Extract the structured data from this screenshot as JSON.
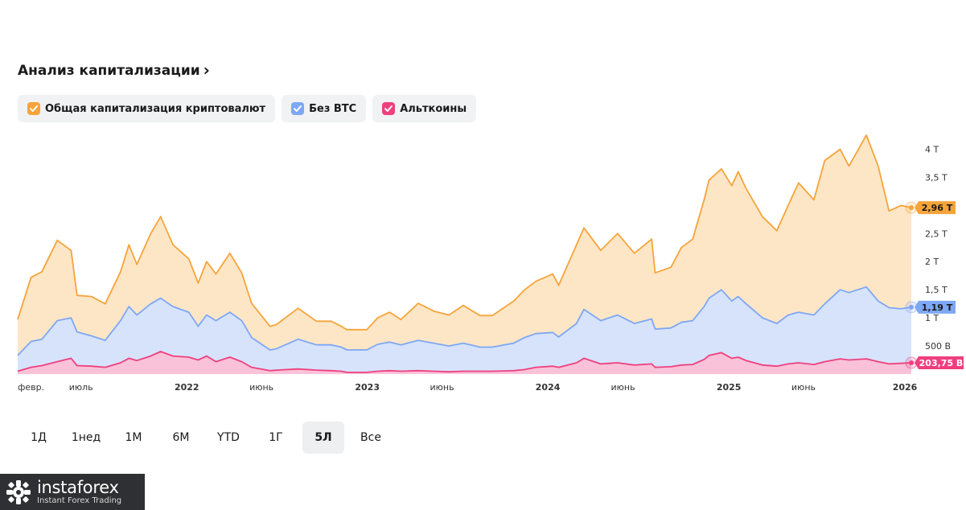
{
  "header": {
    "title": "Анализ капитализации"
  },
  "legend": [
    {
      "label": "Общая капитализация криптовалют",
      "color": "#f6a43a"
    },
    {
      "label": "Без BTC",
      "color": "#7ea7f5"
    },
    {
      "label": "Альткоины",
      "color": "#ef3f7e"
    }
  ],
  "ranges": {
    "items": [
      "1Д",
      "1нед",
      "1М",
      "6М",
      "YTD",
      "1Г",
      "5Л",
      "Все"
    ],
    "selected": "5Л"
  },
  "brand": {
    "name": "instaforex",
    "tagline": "Instant Forex Trading"
  },
  "chart_data": {
    "type": "area",
    "y_ticks": [
      {
        "value": 0.5,
        "label": "500 B"
      },
      {
        "value": 1.0,
        "label": "1 T"
      },
      {
        "value": 1.5,
        "label": "1,5 T"
      },
      {
        "value": 2.0,
        "label": "2 T"
      },
      {
        "value": 2.5,
        "label": "2,5 T"
      },
      {
        "value": 3.0,
        "label": "3 T"
      },
      {
        "value": 3.5,
        "label": "3,5 T"
      },
      {
        "value": 4.0,
        "label": "4 T"
      }
    ],
    "x_ticks": [
      {
        "date": "2021-02-01",
        "label": "февр.",
        "bold": false
      },
      {
        "date": "2021-06-01",
        "label": "июль",
        "bold": false
      },
      {
        "date": "2022-01-01",
        "label": "2022",
        "bold": true
      },
      {
        "date": "2022-06-01",
        "label": "июнь",
        "bold": false
      },
      {
        "date": "2023-01-01",
        "label": "2023",
        "bold": true
      },
      {
        "date": "2023-06-01",
        "label": "июнь",
        "bold": false
      },
      {
        "date": "2024-01-01",
        "label": "2024",
        "bold": true
      },
      {
        "date": "2024-06-01",
        "label": "июнь",
        "bold": false
      },
      {
        "date": "2025-01-01",
        "label": "2025",
        "bold": true
      },
      {
        "date": "2025-06-01",
        "label": "июнь",
        "bold": false
      },
      {
        "date": "2026-01-01",
        "label": "2026",
        "bold": true
      }
    ],
    "ylim": [
      0,
      4.15
    ],
    "xlim": [
      "2021-01-24",
      "2026-01-05"
    ],
    "grid": false,
    "legend_position": "top-left",
    "series": [
      {
        "name": "Общая капитализация криптовалют",
        "color": "#f6a43a",
        "fill": "#fde6c6",
        "last_label": "2,96 T",
        "points": [
          [
            "2021-01-24",
            0.97
          ],
          [
            "2021-02-20",
            1.72
          ],
          [
            "2021-03-14",
            1.82
          ],
          [
            "2021-04-14",
            2.38
          ],
          [
            "2021-05-12",
            2.2
          ],
          [
            "2021-05-24",
            1.4
          ],
          [
            "2021-06-22",
            1.38
          ],
          [
            "2021-07-20",
            1.25
          ],
          [
            "2021-08-20",
            1.82
          ],
          [
            "2021-09-06",
            2.3
          ],
          [
            "2021-09-22",
            1.95
          ],
          [
            "2021-10-20",
            2.5
          ],
          [
            "2021-11-09",
            2.8
          ],
          [
            "2021-12-04",
            2.3
          ],
          [
            "2022-01-05",
            2.05
          ],
          [
            "2022-01-24",
            1.62
          ],
          [
            "2022-02-10",
            2.0
          ],
          [
            "2022-03-01",
            1.78
          ],
          [
            "2022-03-29",
            2.15
          ],
          [
            "2022-04-22",
            1.8
          ],
          [
            "2022-05-12",
            1.26
          ],
          [
            "2022-06-18",
            0.85
          ],
          [
            "2022-07-01",
            0.88
          ],
          [
            "2022-08-14",
            1.17
          ],
          [
            "2022-09-20",
            0.94
          ],
          [
            "2022-10-20",
            0.94
          ],
          [
            "2022-11-09",
            0.85
          ],
          [
            "2022-11-21",
            0.79
          ],
          [
            "2022-12-31",
            0.79
          ],
          [
            "2023-01-22",
            1.0
          ],
          [
            "2023-02-15",
            1.1
          ],
          [
            "2023-03-10",
            0.97
          ],
          [
            "2023-04-14",
            1.26
          ],
          [
            "2023-05-15",
            1.12
          ],
          [
            "2023-06-15",
            1.05
          ],
          [
            "2023-07-14",
            1.22
          ],
          [
            "2023-08-17",
            1.04
          ],
          [
            "2023-09-11",
            1.04
          ],
          [
            "2023-10-24",
            1.3
          ],
          [
            "2023-11-15",
            1.5
          ],
          [
            "2023-12-08",
            1.65
          ],
          [
            "2024-01-11",
            1.78
          ],
          [
            "2024-01-23",
            1.58
          ],
          [
            "2024-02-28",
            2.3
          ],
          [
            "2024-03-14",
            2.6
          ],
          [
            "2024-04-17",
            2.2
          ],
          [
            "2024-05-21",
            2.5
          ],
          [
            "2024-06-24",
            2.15
          ],
          [
            "2024-07-29",
            2.4
          ],
          [
            "2024-08-05",
            1.8
          ],
          [
            "2024-09-06",
            1.9
          ],
          [
            "2024-09-27",
            2.25
          ],
          [
            "2024-10-20",
            2.4
          ],
          [
            "2024-11-12",
            3.1
          ],
          [
            "2024-11-22",
            3.45
          ],
          [
            "2024-12-17",
            3.65
          ],
          [
            "2025-01-07",
            3.35
          ],
          [
            "2025-01-20",
            3.6
          ],
          [
            "2025-02-05",
            3.3
          ],
          [
            "2025-03-10",
            2.8
          ],
          [
            "2025-04-08",
            2.55
          ],
          [
            "2025-05-01",
            3.0
          ],
          [
            "2025-05-22",
            3.4
          ],
          [
            "2025-06-22",
            3.1
          ],
          [
            "2025-07-14",
            3.8
          ],
          [
            "2025-08-14",
            4.0
          ],
          [
            "2025-09-01",
            3.7
          ],
          [
            "2025-10-06",
            4.25
          ],
          [
            "2025-10-30",
            3.7
          ],
          [
            "2025-11-21",
            2.9
          ],
          [
            "2025-12-15",
            3.0
          ],
          [
            "2026-01-05",
            2.96
          ]
        ]
      },
      {
        "name": "Без BTC",
        "color": "#7ea7f5",
        "fill": "#d6e3fb",
        "last_label": "1,19 T",
        "points": [
          [
            "2021-01-24",
            0.33
          ],
          [
            "2021-02-20",
            0.58
          ],
          [
            "2021-03-14",
            0.62
          ],
          [
            "2021-04-14",
            0.95
          ],
          [
            "2021-05-12",
            1.0
          ],
          [
            "2021-05-24",
            0.75
          ],
          [
            "2021-06-22",
            0.68
          ],
          [
            "2021-07-20",
            0.6
          ],
          [
            "2021-08-20",
            0.95
          ],
          [
            "2021-09-06",
            1.2
          ],
          [
            "2021-09-22",
            1.05
          ],
          [
            "2021-10-20",
            1.25
          ],
          [
            "2021-11-09",
            1.35
          ],
          [
            "2021-12-04",
            1.2
          ],
          [
            "2022-01-05",
            1.1
          ],
          [
            "2022-01-24",
            0.85
          ],
          [
            "2022-02-10",
            1.05
          ],
          [
            "2022-03-01",
            0.95
          ],
          [
            "2022-03-29",
            1.1
          ],
          [
            "2022-04-22",
            0.95
          ],
          [
            "2022-05-12",
            0.65
          ],
          [
            "2022-06-18",
            0.43
          ],
          [
            "2022-07-01",
            0.45
          ],
          [
            "2022-08-14",
            0.62
          ],
          [
            "2022-09-20",
            0.52
          ],
          [
            "2022-10-20",
            0.52
          ],
          [
            "2022-11-09",
            0.48
          ],
          [
            "2022-11-21",
            0.43
          ],
          [
            "2022-12-31",
            0.43
          ],
          [
            "2023-01-22",
            0.53
          ],
          [
            "2023-02-15",
            0.57
          ],
          [
            "2023-03-10",
            0.52
          ],
          [
            "2023-04-14",
            0.6
          ],
          [
            "2023-05-15",
            0.55
          ],
          [
            "2023-06-15",
            0.5
          ],
          [
            "2023-07-14",
            0.55
          ],
          [
            "2023-08-17",
            0.48
          ],
          [
            "2023-09-11",
            0.48
          ],
          [
            "2023-10-24",
            0.55
          ],
          [
            "2023-11-15",
            0.65
          ],
          [
            "2023-12-08",
            0.72
          ],
          [
            "2024-01-11",
            0.74
          ],
          [
            "2024-01-23",
            0.66
          ],
          [
            "2024-02-28",
            0.9
          ],
          [
            "2024-03-14",
            1.15
          ],
          [
            "2024-04-17",
            0.95
          ],
          [
            "2024-05-21",
            1.05
          ],
          [
            "2024-06-24",
            0.9
          ],
          [
            "2024-07-29",
            0.98
          ],
          [
            "2024-08-05",
            0.8
          ],
          [
            "2024-09-06",
            0.82
          ],
          [
            "2024-09-27",
            0.92
          ],
          [
            "2024-10-20",
            0.95
          ],
          [
            "2024-11-12",
            1.2
          ],
          [
            "2024-11-22",
            1.35
          ],
          [
            "2024-12-17",
            1.5
          ],
          [
            "2025-01-07",
            1.3
          ],
          [
            "2025-01-20",
            1.38
          ],
          [
            "2025-02-05",
            1.25
          ],
          [
            "2025-03-10",
            1.0
          ],
          [
            "2025-04-08",
            0.9
          ],
          [
            "2025-05-01",
            1.05
          ],
          [
            "2025-05-22",
            1.1
          ],
          [
            "2025-06-22",
            1.05
          ],
          [
            "2025-07-14",
            1.25
          ],
          [
            "2025-08-14",
            1.5
          ],
          [
            "2025-09-01",
            1.45
          ],
          [
            "2025-10-06",
            1.55
          ],
          [
            "2025-10-30",
            1.3
          ],
          [
            "2025-11-21",
            1.18
          ],
          [
            "2025-12-15",
            1.16
          ],
          [
            "2026-01-05",
            1.19
          ]
        ]
      },
      {
        "name": "Альткоины",
        "color": "#ef3f7e",
        "fill": "#f9c2d8",
        "last_label": "203,75 B",
        "points": [
          [
            "2021-01-24",
            0.05
          ],
          [
            "2021-02-20",
            0.12
          ],
          [
            "2021-03-14",
            0.15
          ],
          [
            "2021-04-14",
            0.22
          ],
          [
            "2021-05-12",
            0.28
          ],
          [
            "2021-05-24",
            0.15
          ],
          [
            "2021-06-22",
            0.14
          ],
          [
            "2021-07-20",
            0.12
          ],
          [
            "2021-08-20",
            0.2
          ],
          [
            "2021-09-06",
            0.28
          ],
          [
            "2021-09-22",
            0.24
          ],
          [
            "2021-10-20",
            0.32
          ],
          [
            "2021-11-09",
            0.4
          ],
          [
            "2021-12-04",
            0.32
          ],
          [
            "2022-01-05",
            0.3
          ],
          [
            "2022-01-24",
            0.25
          ],
          [
            "2022-02-10",
            0.32
          ],
          [
            "2022-03-01",
            0.22
          ],
          [
            "2022-03-29",
            0.3
          ],
          [
            "2022-04-22",
            0.22
          ],
          [
            "2022-05-12",
            0.12
          ],
          [
            "2022-06-18",
            0.06
          ],
          [
            "2022-07-01",
            0.07
          ],
          [
            "2022-08-14",
            0.09
          ],
          [
            "2022-09-20",
            0.07
          ],
          [
            "2022-10-20",
            0.06
          ],
          [
            "2022-11-09",
            0.05
          ],
          [
            "2022-11-21",
            0.03
          ],
          [
            "2022-12-31",
            0.03
          ],
          [
            "2023-01-22",
            0.05
          ],
          [
            "2023-02-15",
            0.06
          ],
          [
            "2023-03-10",
            0.05
          ],
          [
            "2023-04-14",
            0.06
          ],
          [
            "2023-05-15",
            0.05
          ],
          [
            "2023-06-15",
            0.04
          ],
          [
            "2023-07-14",
            0.05
          ],
          [
            "2023-08-17",
            0.05
          ],
          [
            "2023-09-11",
            0.05
          ],
          [
            "2023-10-24",
            0.06
          ],
          [
            "2023-11-15",
            0.08
          ],
          [
            "2023-12-08",
            0.12
          ],
          [
            "2024-01-11",
            0.14
          ],
          [
            "2024-01-23",
            0.12
          ],
          [
            "2024-02-28",
            0.2
          ],
          [
            "2024-03-14",
            0.28
          ],
          [
            "2024-04-17",
            0.18
          ],
          [
            "2024-05-21",
            0.2
          ],
          [
            "2024-06-24",
            0.16
          ],
          [
            "2024-07-29",
            0.18
          ],
          [
            "2024-08-05",
            0.12
          ],
          [
            "2024-09-06",
            0.13
          ],
          [
            "2024-09-27",
            0.16
          ],
          [
            "2024-10-20",
            0.17
          ],
          [
            "2024-11-12",
            0.26
          ],
          [
            "2024-11-22",
            0.33
          ],
          [
            "2024-12-17",
            0.38
          ],
          [
            "2025-01-07",
            0.28
          ],
          [
            "2025-01-20",
            0.3
          ],
          [
            "2025-02-05",
            0.24
          ],
          [
            "2025-03-10",
            0.16
          ],
          [
            "2025-04-08",
            0.14
          ],
          [
            "2025-05-01",
            0.18
          ],
          [
            "2025-05-22",
            0.2
          ],
          [
            "2025-06-22",
            0.17
          ],
          [
            "2025-07-14",
            0.22
          ],
          [
            "2025-08-14",
            0.27
          ],
          [
            "2025-09-01",
            0.25
          ],
          [
            "2025-10-06",
            0.27
          ],
          [
            "2025-10-30",
            0.22
          ],
          [
            "2025-11-21",
            0.18
          ],
          [
            "2025-12-15",
            0.19
          ],
          [
            "2026-01-05",
            0.2
          ]
        ]
      }
    ]
  }
}
